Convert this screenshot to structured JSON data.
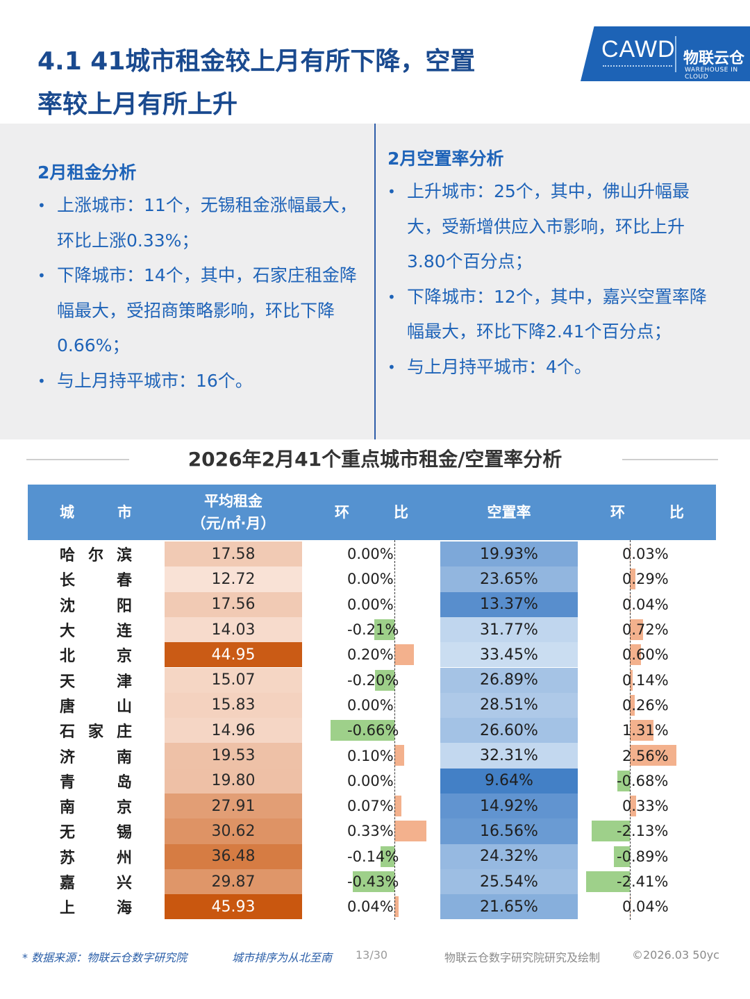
{
  "header": {
    "title_line1": "4.1 41城市租金较上月有所下降，空置",
    "title_line2": "率较上月有所上升",
    "logo_text": "CAWD",
    "logo_cn": "物联云仓",
    "logo_en": "WAREHOUSE IN CLOUD"
  },
  "rent_analysis": {
    "heading": "2月租金分析",
    "bullets": [
      "上涨城市：11个，无锡租金涨幅最大，环比上涨0.33%；",
      "下降城市：14个，其中，石家庄租金降幅最大，受招商策略影响，环比下降0.66%；",
      "与上月持平城市：16个。"
    ]
  },
  "vacancy_analysis": {
    "heading": "2月空置率分析",
    "bullets": [
      "上升城市：25个，其中，佛山升幅最大，受新增供应入市影响，环比上升3.80个百分点；",
      "下降城市：12个，其中，嘉兴空置率降幅最大，环比下降2.41个百分点；",
      "与上月持平城市：4个。"
    ]
  },
  "chart_data": {
    "type": "table",
    "title": "2026年2月41个重点城市租金/空置率分析",
    "columns": {
      "city": [
        "城",
        "市"
      ],
      "rent": [
        "平均租金",
        "（元/㎡·月）"
      ],
      "rent_change": [
        "环",
        "比"
      ],
      "vacancy": "空置率",
      "vacancy_change": [
        "环",
        "比"
      ]
    },
    "rows": [
      {
        "city": [
          "哈",
          "尔",
          "滨"
        ],
        "rent": "17.58",
        "rent_v": 17.58,
        "rent_chg": "0.00%",
        "rent_chg_v": 0.0,
        "vac": "19.93%",
        "vac_v": 19.93,
        "vac_chg": "0.03%",
        "vac_chg_v": 0.03
      },
      {
        "city": [
          "长",
          "春"
        ],
        "rent": "12.72",
        "rent_v": 12.72,
        "rent_chg": "0.00%",
        "rent_chg_v": 0.0,
        "vac": "23.65%",
        "vac_v": 23.65,
        "vac_chg": "0.29%",
        "vac_chg_v": 0.29
      },
      {
        "city": [
          "沈",
          "阳"
        ],
        "rent": "17.56",
        "rent_v": 17.56,
        "rent_chg": "0.00%",
        "rent_chg_v": 0.0,
        "vac": "13.37%",
        "vac_v": 13.37,
        "vac_chg": "0.04%",
        "vac_chg_v": 0.04
      },
      {
        "city": [
          "大",
          "连"
        ],
        "rent": "14.03",
        "rent_v": 14.03,
        "rent_chg": "-0.21%",
        "rent_chg_v": -0.21,
        "vac": "31.77%",
        "vac_v": 31.77,
        "vac_chg": "0.72%",
        "vac_chg_v": 0.72
      },
      {
        "city": [
          "北",
          "京"
        ],
        "rent": "44.95",
        "rent_v": 44.95,
        "rent_chg": "0.20%",
        "rent_chg_v": 0.2,
        "vac": "33.45%",
        "vac_v": 33.45,
        "vac_chg": "0.60%",
        "vac_chg_v": 0.6
      },
      {
        "city": [
          "天",
          "津"
        ],
        "rent": "15.07",
        "rent_v": 15.07,
        "rent_chg": "-0.20%",
        "rent_chg_v": -0.2,
        "vac": "26.89%",
        "vac_v": 26.89,
        "vac_chg": "0.14%",
        "vac_chg_v": 0.14
      },
      {
        "city": [
          "唐",
          "山"
        ],
        "rent": "15.83",
        "rent_v": 15.83,
        "rent_chg": "0.00%",
        "rent_chg_v": 0.0,
        "vac": "28.51%",
        "vac_v": 28.51,
        "vac_chg": "0.26%",
        "vac_chg_v": 0.26
      },
      {
        "city": [
          "石",
          "家",
          "庄"
        ],
        "rent": "14.96",
        "rent_v": 14.96,
        "rent_chg": "-0.66%",
        "rent_chg_v": -0.66,
        "vac": "26.60%",
        "vac_v": 26.6,
        "vac_chg": "1.31%",
        "vac_chg_v": 1.31
      },
      {
        "city": [
          "济",
          "南"
        ],
        "rent": "19.53",
        "rent_v": 19.53,
        "rent_chg": "0.10%",
        "rent_chg_v": 0.1,
        "vac": "32.31%",
        "vac_v": 32.31,
        "vac_chg": "2.56%",
        "vac_chg_v": 2.56
      },
      {
        "city": [
          "青",
          "岛"
        ],
        "rent": "19.80",
        "rent_v": 19.8,
        "rent_chg": "0.00%",
        "rent_chg_v": 0.0,
        "vac": "9.64%",
        "vac_v": 9.64,
        "vac_chg": "-0.68%",
        "vac_chg_v": -0.68
      },
      {
        "city": [
          "南",
          "京"
        ],
        "rent": "27.91",
        "rent_v": 27.91,
        "rent_chg": "0.07%",
        "rent_chg_v": 0.07,
        "vac": "14.92%",
        "vac_v": 14.92,
        "vac_chg": "0.33%",
        "vac_chg_v": 0.33
      },
      {
        "city": [
          "无",
          "锡"
        ],
        "rent": "30.62",
        "rent_v": 30.62,
        "rent_chg": "0.33%",
        "rent_chg_v": 0.33,
        "vac": "16.56%",
        "vac_v": 16.56,
        "vac_chg": "-2.13%",
        "vac_chg_v": -2.13
      },
      {
        "city": [
          "苏",
          "州"
        ],
        "rent": "36.48",
        "rent_v": 36.48,
        "rent_chg": "-0.14%",
        "rent_chg_v": -0.14,
        "vac": "24.32%",
        "vac_v": 24.32,
        "vac_chg": "-0.89%",
        "vac_chg_v": -0.89
      },
      {
        "city": [
          "嘉",
          "兴"
        ],
        "rent": "29.87",
        "rent_v": 29.87,
        "rent_chg": "-0.43%",
        "rent_chg_v": -0.43,
        "vac": "25.54%",
        "vac_v": 25.54,
        "vac_chg": "-2.41%",
        "vac_chg_v": -2.41
      },
      {
        "city": [
          "上",
          "海"
        ],
        "rent": "45.93",
        "rent_v": 45.93,
        "rent_chg": "0.04%",
        "rent_chg_v": 0.04,
        "vac": "21.65%",
        "vac_v": 21.65,
        "vac_chg": "0.04%",
        "vac_chg_v": 0.04
      }
    ],
    "colors": {
      "header_bg": "#5592d0",
      "positive_bar": "#f3b18d",
      "negative_bar": "#9ed08a",
      "rent_low": "#fbe6dc",
      "rent_high": "#c9570f",
      "vac_low": "#cddff2",
      "vac_high": "#3f7dc5"
    }
  },
  "footer": {
    "source": "* 数据来源：物联云仓数字研究院",
    "order_note": "城市排序为从北至南",
    "page": "13/30",
    "credit": "物联云仓数字研究院研究及绘制",
    "copyright": "©2026.03 50yc"
  }
}
